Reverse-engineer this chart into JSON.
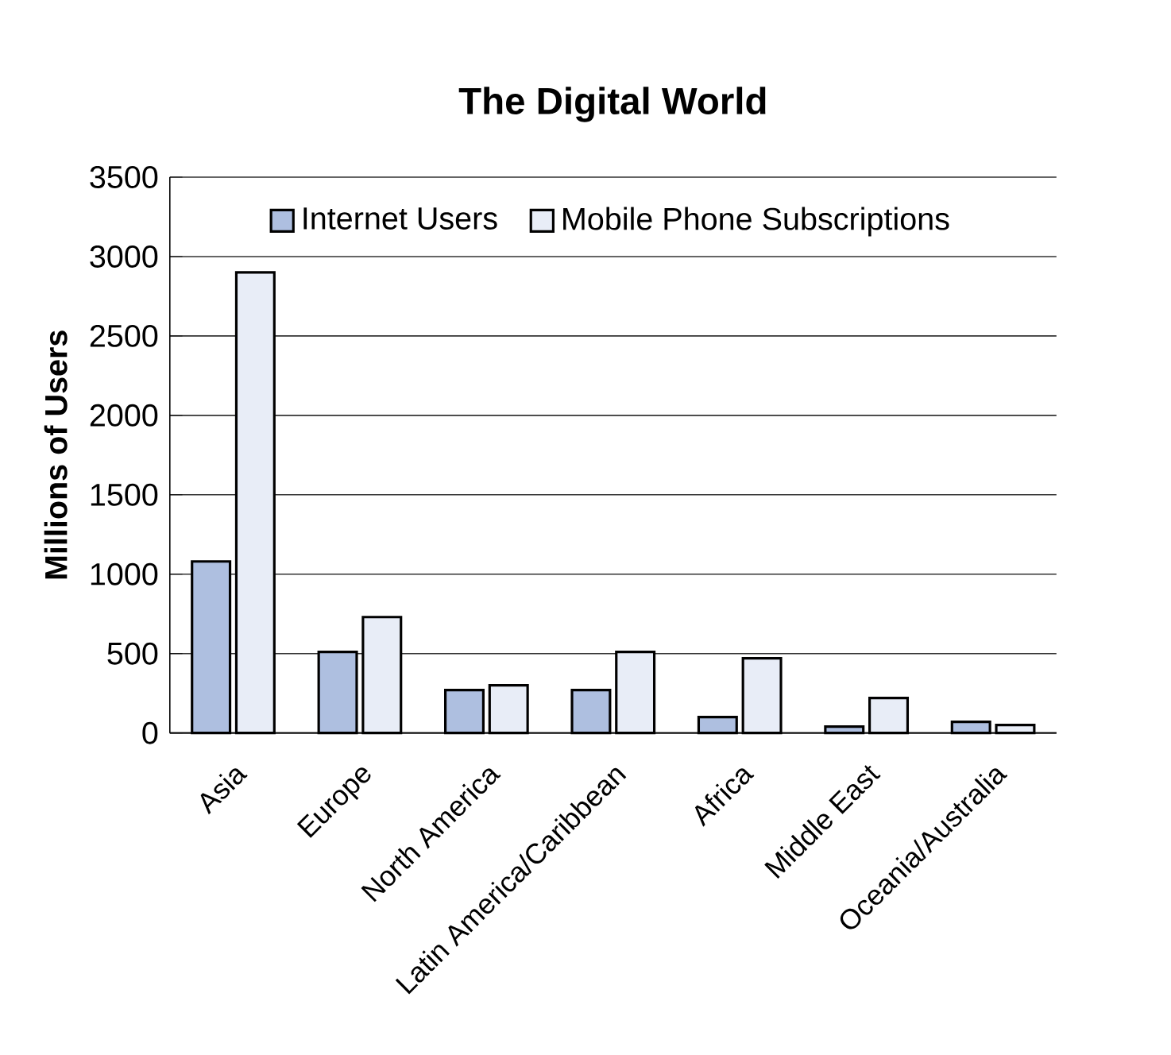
{
  "chart_data": {
    "type": "bar",
    "title": "The Digital World",
    "ylabel": "Millions of Users",
    "categories": [
      "Asia",
      "Europe",
      "North America",
      "Latin America/Caribbean",
      "Africa",
      "Middle East",
      "Oceania/Australia"
    ],
    "series": [
      {
        "name": "Internet Users",
        "color": "#aebfe0",
        "values": [
          1080,
          510,
          270,
          270,
          100,
          40,
          70
        ]
      },
      {
        "name": "Mobile Phone Subscriptions",
        "color": "#e8edf7",
        "values": [
          2900,
          730,
          300,
          510,
          470,
          220,
          50
        ]
      }
    ],
    "ylim": [
      0,
      3500
    ],
    "yticks": [
      0,
      500,
      1000,
      1500,
      2000,
      2500,
      3000,
      3500
    ],
    "grid": "y",
    "legend": "top"
  }
}
